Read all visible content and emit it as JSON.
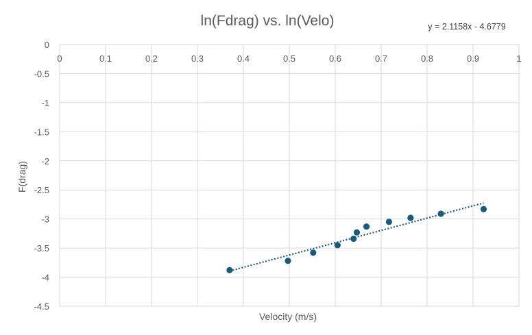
{
  "chart_data": {
    "type": "scatter",
    "title": "ln(Fdrag) vs. ln(Velo)",
    "xlabel": "Velocity (m/s)",
    "ylabel": "F(drag)",
    "xlim": [
      0,
      1
    ],
    "ylim": [
      -4.5,
      0
    ],
    "x_ticks": [
      "0",
      "0.1",
      "0.2",
      "0.3",
      "0.4",
      "0.5",
      "0.6",
      "0.7",
      "0.8",
      "0.9",
      "1"
    ],
    "y_ticks": [
      "0",
      "-0.5",
      "-1",
      "-1.5",
      "-2",
      "-2.5",
      "-3",
      "-3.5",
      "-4",
      "-4.5"
    ],
    "x_major": 0.1,
    "y_major": 0.5,
    "grid": true,
    "legend": "none",
    "points": [
      {
        "x": 0.37,
        "y": -3.88
      },
      {
        "x": 0.497,
        "y": -3.72
      },
      {
        "x": 0.552,
        "y": -3.58
      },
      {
        "x": 0.605,
        "y": -3.45
      },
      {
        "x": 0.64,
        "y": -3.34
      },
      {
        "x": 0.647,
        "y": -3.23
      },
      {
        "x": 0.668,
        "y": -3.13
      },
      {
        "x": 0.717,
        "y": -3.05
      },
      {
        "x": 0.764,
        "y": -2.98
      },
      {
        "x": 0.83,
        "y": -2.91
      },
      {
        "x": 0.923,
        "y": -2.83
      }
    ],
    "trendline": {
      "type": "linear",
      "slope": 2.1158,
      "intercept": -4.6779,
      "x_range": [
        0.37,
        0.923
      ],
      "equation_label": "y = 2.1158x - 4.6779"
    },
    "colors": {
      "points": "#1b5b7a",
      "trendline": "#1b5b7a",
      "grid": "#d9d9d9",
      "text": "#595959"
    }
  }
}
